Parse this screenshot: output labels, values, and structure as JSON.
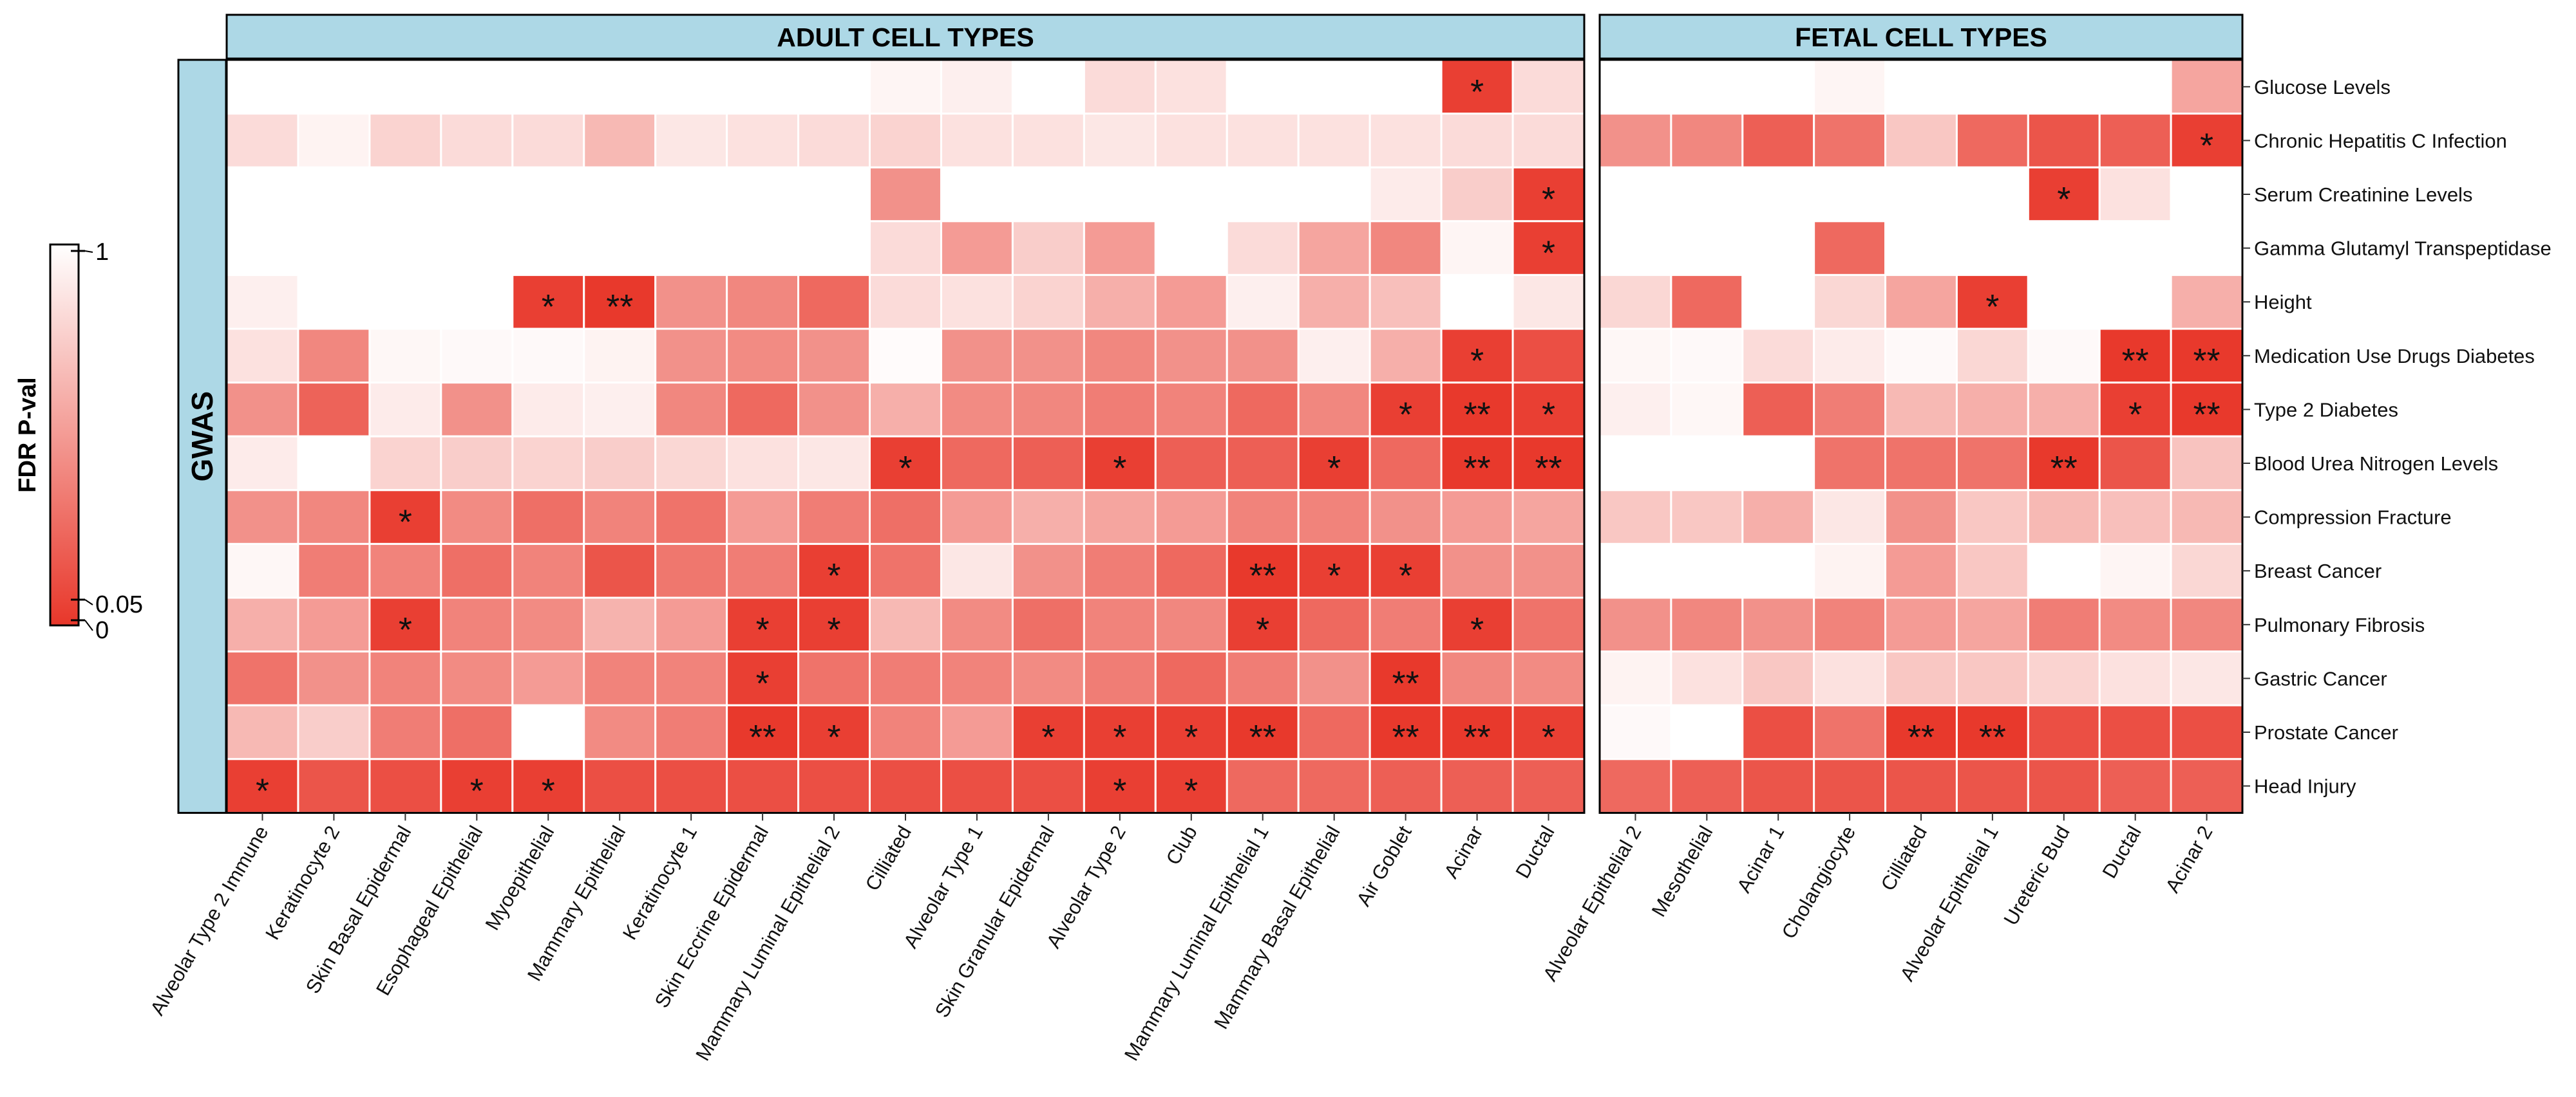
{
  "chart_data": {
    "type": "heatmap",
    "title": "",
    "panels": [
      {
        "name": "ADULT CELL TYPES",
        "columns": [
          "Alveolar Type 2 Immune",
          "Keratinocyte 2",
          "Skin Basal Epidermal",
          "Esophageal Epithelial",
          "Myoepithelial",
          "Mammary Epithelial",
          "Keratinocyte 1",
          "Skin Eccrine Epidermal",
          "Mammary Luminal Epithelial 2",
          "Cilliated",
          "Alveolar Type 1",
          "Skin Granular Epidermal",
          "Alveolar Type 2",
          "Club",
          "Mammary Luminal Epithelial 1",
          "Mammary Basal Epithelial",
          "Air Goblet",
          "Acinar",
          "Ductal"
        ],
        "values": [
          [
            1.0,
            1.0,
            1.0,
            1.0,
            1.0,
            1.0,
            1.0,
            1.0,
            1.0,
            0.95,
            0.92,
            1.0,
            0.82,
            0.85,
            1.0,
            1.0,
            1.0,
            0.04,
            0.82
          ],
          [
            0.82,
            0.94,
            0.78,
            0.82,
            0.82,
            0.65,
            0.88,
            0.85,
            0.82,
            0.78,
            0.85,
            0.85,
            0.88,
            0.85,
            0.85,
            0.85,
            0.85,
            0.82,
            0.82
          ],
          [
            1.0,
            1.0,
            1.0,
            1.0,
            1.0,
            1.0,
            1.0,
            1.0,
            1.0,
            0.45,
            1.0,
            1.0,
            1.0,
            1.0,
            1.0,
            1.0,
            0.9,
            0.75,
            0.04
          ],
          [
            1.0,
            1.0,
            1.0,
            1.0,
            1.0,
            1.0,
            1.0,
            1.0,
            1.0,
            0.82,
            0.5,
            0.75,
            0.5,
            1.0,
            0.82,
            0.55,
            0.4,
            0.95,
            0.04
          ],
          [
            0.92,
            1.0,
            1.0,
            1.0,
            0.04,
            0.01,
            0.45,
            0.4,
            0.25,
            0.82,
            0.85,
            0.78,
            0.6,
            0.5,
            0.92,
            0.6,
            0.68,
            1.0,
            0.88
          ],
          [
            0.85,
            0.4,
            0.96,
            0.97,
            0.97,
            0.94,
            0.45,
            0.42,
            0.45,
            0.98,
            0.45,
            0.45,
            0.4,
            0.45,
            0.45,
            0.92,
            0.6,
            0.04,
            0.12
          ],
          [
            0.45,
            0.22,
            0.9,
            0.45,
            0.9,
            0.92,
            0.4,
            0.25,
            0.45,
            0.6,
            0.42,
            0.4,
            0.35,
            0.38,
            0.25,
            0.4,
            0.04,
            0.01,
            0.04
          ],
          [
            0.9,
            1.0,
            0.78,
            0.75,
            0.78,
            0.75,
            0.8,
            0.85,
            0.88,
            0.04,
            0.25,
            0.2,
            0.04,
            0.2,
            0.2,
            0.04,
            0.25,
            0.01,
            0.01
          ],
          [
            0.45,
            0.4,
            0.04,
            0.42,
            0.28,
            0.38,
            0.3,
            0.5,
            0.35,
            0.28,
            0.5,
            0.6,
            0.55,
            0.5,
            0.38,
            0.38,
            0.45,
            0.5,
            0.55
          ],
          [
            0.96,
            0.35,
            0.38,
            0.28,
            0.38,
            0.15,
            0.32,
            0.35,
            0.04,
            0.3,
            0.88,
            0.45,
            0.35,
            0.25,
            0.01,
            0.04,
            0.04,
            0.45,
            0.45
          ],
          [
            0.6,
            0.5,
            0.04,
            0.38,
            0.42,
            0.62,
            0.5,
            0.04,
            0.04,
            0.65,
            0.42,
            0.28,
            0.38,
            0.4,
            0.04,
            0.25,
            0.35,
            0.04,
            0.3
          ],
          [
            0.3,
            0.45,
            0.38,
            0.42,
            0.5,
            0.38,
            0.38,
            0.04,
            0.3,
            0.35,
            0.38,
            0.42,
            0.35,
            0.25,
            0.35,
            0.45,
            0.01,
            0.4,
            0.42
          ],
          [
            0.65,
            0.75,
            0.35,
            0.28,
            1.0,
            0.42,
            0.35,
            0.01,
            0.04,
            0.38,
            0.5,
            0.04,
            0.04,
            0.04,
            0.01,
            0.25,
            0.01,
            0.01,
            0.04
          ],
          [
            0.04,
            0.15,
            0.12,
            0.04,
            0.04,
            0.12,
            0.12,
            0.12,
            0.12,
            0.12,
            0.12,
            0.12,
            0.04,
            0.04,
            0.25,
            0.25,
            0.2,
            0.2,
            0.2
          ]
        ],
        "stars": [
          [
            "",
            "",
            "",
            "",
            "",
            "",
            "",
            "",
            "",
            "",
            "",
            "",
            "",
            "",
            "",
            "",
            "",
            "*",
            ""
          ],
          [
            "",
            "",
            "",
            "",
            "",
            "",
            "",
            "",
            "",
            "",
            "",
            "",
            "",
            "",
            "",
            "",
            "",
            "",
            ""
          ],
          [
            "",
            "",
            "",
            "",
            "",
            "",
            "",
            "",
            "",
            "",
            "",
            "",
            "",
            "",
            "",
            "",
            "",
            "",
            "*"
          ],
          [
            "",
            "",
            "",
            "",
            "",
            "",
            "",
            "",
            "",
            "",
            "",
            "",
            "",
            "",
            "",
            "",
            "",
            "",
            "*"
          ],
          [
            "",
            "",
            "",
            "",
            "*",
            "**",
            "",
            "",
            "",
            "",
            "",
            "",
            "",
            "",
            "",
            "",
            "",
            "",
            ""
          ],
          [
            "",
            "",
            "",
            "",
            "",
            "",
            "",
            "",
            "",
            "",
            "",
            "",
            "",
            "",
            "",
            "",
            "",
            "*",
            ""
          ],
          [
            "",
            "",
            "",
            "",
            "",
            "",
            "",
            "",
            "",
            "",
            "",
            "",
            "",
            "",
            "",
            "",
            "*",
            "**",
            "*"
          ],
          [
            "",
            "",
            "",
            "",
            "",
            "",
            "",
            "",
            "",
            "*",
            "",
            "",
            "*",
            "",
            "",
            "*",
            "",
            "**",
            "**"
          ],
          [
            "",
            "",
            "*",
            "",
            "",
            "",
            "",
            "",
            "",
            "",
            "",
            "",
            "",
            "",
            "",
            "",
            "",
            "",
            ""
          ],
          [
            "",
            "",
            "",
            "",
            "",
            "",
            "",
            "",
            "*",
            "",
            "",
            "",
            "",
            "",
            "**",
            "*",
            "*",
            "",
            ""
          ],
          [
            "",
            "",
            "*",
            "",
            "",
            "",
            "",
            "*",
            "*",
            "",
            "",
            "",
            "",
            "",
            "*",
            "",
            "",
            "*",
            ""
          ],
          [
            "",
            "",
            "",
            "",
            "",
            "",
            "",
            "*",
            "",
            "",
            "",
            "",
            "",
            "",
            "",
            "",
            "**",
            "",
            ""
          ],
          [
            "",
            "",
            "",
            "",
            "",
            "",
            "",
            "**",
            "*",
            "",
            "",
            "*",
            "*",
            "*",
            "**",
            "",
            "**",
            "**",
            "*"
          ],
          [
            "*",
            "",
            "",
            "*",
            "*",
            "",
            "",
            "",
            "",
            "",
            "",
            "",
            "*",
            "*",
            "",
            "",
            "",
            "",
            ""
          ]
        ]
      },
      {
        "name": "FETAL CELL TYPES",
        "columns": [
          "Alveolar Epithelial 2",
          "Mesothelial",
          "Acinar 1",
          "Cholangiocyte",
          "Cilliated",
          "Alveolar Epithelial 1",
          "Ureteric Bud",
          "Ductal",
          "Acinar 2"
        ],
        "values": [
          [
            1.0,
            1.0,
            1.0,
            0.95,
            1.0,
            1.0,
            1.0,
            1.0,
            0.55
          ],
          [
            0.45,
            0.4,
            0.2,
            0.3,
            0.72,
            0.25,
            0.15,
            0.2,
            0.04
          ],
          [
            1.0,
            1.0,
            1.0,
            1.0,
            1.0,
            1.0,
            0.04,
            0.85,
            1.0
          ],
          [
            1.0,
            1.0,
            1.0,
            0.25,
            1.0,
            1.0,
            1.0,
            1.0,
            1.0
          ],
          [
            0.8,
            0.25,
            1.0,
            0.8,
            0.55,
            0.04,
            1.0,
            1.0,
            0.6
          ],
          [
            0.96,
            0.97,
            0.82,
            0.9,
            0.97,
            0.8,
            0.97,
            0.01,
            0.01
          ],
          [
            0.92,
            0.96,
            0.2,
            0.35,
            0.65,
            0.6,
            0.6,
            0.04,
            0.01
          ],
          [
            1.0,
            1.0,
            1.0,
            0.3,
            0.3,
            0.3,
            0.01,
            0.15,
            0.7
          ],
          [
            0.72,
            0.72,
            0.6,
            0.88,
            0.45,
            0.72,
            0.65,
            0.68,
            0.65
          ],
          [
            1.0,
            1.0,
            1.0,
            0.94,
            0.5,
            0.72,
            1.0,
            0.95,
            0.8
          ],
          [
            0.45,
            0.4,
            0.45,
            0.38,
            0.5,
            0.55,
            0.35,
            0.42,
            0.4
          ],
          [
            0.94,
            0.85,
            0.72,
            0.85,
            0.72,
            0.72,
            0.78,
            0.85,
            0.88
          ],
          [
            0.97,
            1.0,
            0.12,
            0.3,
            0.01,
            0.01,
            0.12,
            0.12,
            0.12
          ],
          [
            0.25,
            0.2,
            0.15,
            0.15,
            0.15,
            0.15,
            0.15,
            0.2,
            0.2
          ]
        ],
        "stars": [
          [
            "",
            "",
            "",
            "",
            "",
            "",
            "",
            "",
            ""
          ],
          [
            "",
            "",
            "",
            "",
            "",
            "",
            "",
            "",
            "*"
          ],
          [
            "",
            "",
            "",
            "",
            "",
            "",
            "*",
            "",
            ""
          ],
          [
            "",
            "",
            "",
            "",
            "",
            "",
            "",
            "",
            ""
          ],
          [
            "",
            "",
            "",
            "",
            "",
            "*",
            "",
            "",
            ""
          ],
          [
            "",
            "",
            "",
            "",
            "",
            "",
            "",
            "**",
            "**"
          ],
          [
            "",
            "",
            "",
            "",
            "",
            "",
            "",
            "*",
            "**"
          ],
          [
            "",
            "",
            "",
            "",
            "",
            "",
            "**",
            "",
            ""
          ],
          [
            "",
            "",
            "",
            "",
            "",
            "",
            "",
            "",
            ""
          ],
          [
            "",
            "",
            "",
            "",
            "",
            "",
            "",
            "",
            ""
          ],
          [
            "",
            "",
            "",
            "",
            "",
            "",
            "",
            "",
            ""
          ],
          [
            "",
            "",
            "",
            "",
            "",
            "",
            "",
            "",
            ""
          ],
          [
            "",
            "",
            "",
            "",
            "**",
            "**",
            "",
            "",
            ""
          ],
          [
            "",
            "",
            "",
            "",
            "",
            "",
            "",
            "",
            ""
          ]
        ]
      }
    ],
    "rows": [
      "Glucose Levels",
      "Chronic Hepatitis C Infection",
      "Serum Creatinine Levels",
      "Gamma Glutamyl Transpeptidase",
      "Height",
      "Medication Use Drugs Diabetes",
      "Type 2 Diabetes",
      "Blood Urea Nitrogen Levels",
      "Compression Fracture",
      "Breast Cancer",
      "Pulmonary Fibrosis",
      "Gastric Cancer",
      "Prostate Cancer",
      "Head Injury"
    ],
    "row_group_label": "GWAS",
    "legend": {
      "title": "FDR P-val",
      "ticks": [
        "1",
        "0.05",
        "0"
      ],
      "tick_values": [
        1,
        0.05,
        0
      ],
      "color_low": "#e8372a",
      "color_high": "#ffffff"
    },
    "strip_color": "#add8e6",
    "grid_color": "#ffffff"
  }
}
